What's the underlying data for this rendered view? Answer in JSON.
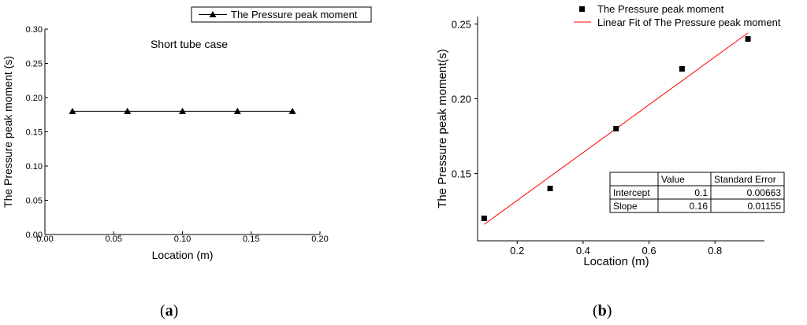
{
  "chart_data": [
    {
      "panel": "a",
      "type": "line",
      "annotation": "Short tube case",
      "xlabel": "Location (m)",
      "ylabel": "The Pressure peak moment (s)",
      "xlim": [
        0.0,
        0.2
      ],
      "ylim": [
        0.0,
        0.3
      ],
      "x_ticks": [
        "0.00",
        "0.05",
        "0.10",
        "0.15",
        "0.20"
      ],
      "y_ticks": [
        "0.00",
        "0.05",
        "0.10",
        "0.15",
        "0.20",
        "0.25",
        "0.30"
      ],
      "grid": false,
      "legend_position": "top-right",
      "series": [
        {
          "name": "The Pressure peak moment",
          "marker": "triangle",
          "x": [
            0.02,
            0.06,
            0.1,
            0.14,
            0.18
          ],
          "values": [
            0.18,
            0.18,
            0.18,
            0.18,
            0.18
          ]
        }
      ]
    },
    {
      "panel": "b",
      "type": "scatter",
      "xlabel": "Location (m)",
      "ylabel": "The Pressure peak moment(s)",
      "xlim": [
        0.08,
        0.95
      ],
      "ylim": [
        0.105,
        0.255
      ],
      "x_ticks": [
        "0.2",
        "0.4",
        "0.6",
        "0.8"
      ],
      "y_ticks": [
        "0.15",
        "0.20",
        "0.25"
      ],
      "grid": false,
      "legend_position": "top-right",
      "series": [
        {
          "name": "The Pressure peak moment",
          "marker": "square",
          "x": [
            0.1,
            0.3,
            0.5,
            0.7,
            0.9
          ],
          "values": [
            0.12,
            0.14,
            0.18,
            0.22,
            0.24
          ]
        },
        {
          "name": "Linear Fit of The Pressure peak moment",
          "line_color": "#ff0000",
          "intercept": 0.1,
          "slope": 0.16,
          "x_range": [
            0.1,
            0.9
          ]
        }
      ],
      "fit_table": {
        "headers": [
          "",
          "Value",
          "Standard Error"
        ],
        "rows": [
          [
            "Intercept",
            "0.1",
            "0.00663"
          ],
          [
            "Slope",
            "0.16",
            "0.01155"
          ]
        ]
      }
    }
  ],
  "captions": {
    "a_open": "(",
    "a_letter": "a",
    "a_close": ")",
    "b_open": "(",
    "b_letter": "b",
    "b_close": ")"
  }
}
